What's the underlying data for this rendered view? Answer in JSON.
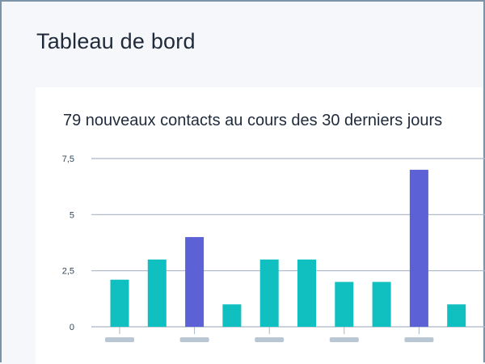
{
  "header": {
    "title": "Tableau de bord"
  },
  "card": {
    "title": "79 nouveaux contacts au cours des 30 derniers jours"
  },
  "chart_data": {
    "type": "bar",
    "title": "79 nouveaux contacts au cours des 30 derniers jours",
    "categories": [
      "",
      "",
      "",
      "",
      "",
      "",
      "",
      "",
      "",
      ""
    ],
    "values": [
      2.1,
      3,
      4,
      1,
      3,
      3,
      2,
      2,
      7,
      1
    ],
    "highlighted": [
      false,
      false,
      true,
      false,
      false,
      false,
      false,
      false,
      true,
      false
    ],
    "yticks": [
      0,
      2.5,
      5,
      7.5
    ],
    "ytick_labels": [
      "0",
      "2,5",
      "5",
      "7,5"
    ],
    "ylim": [
      0,
      7.5
    ],
    "grid": true,
    "colors": {
      "default": "#10bfbf",
      "highlight": "#5d61d6",
      "grid": "#a9b6c6",
      "axis_label_placeholder": "#b9c6d4"
    }
  }
}
